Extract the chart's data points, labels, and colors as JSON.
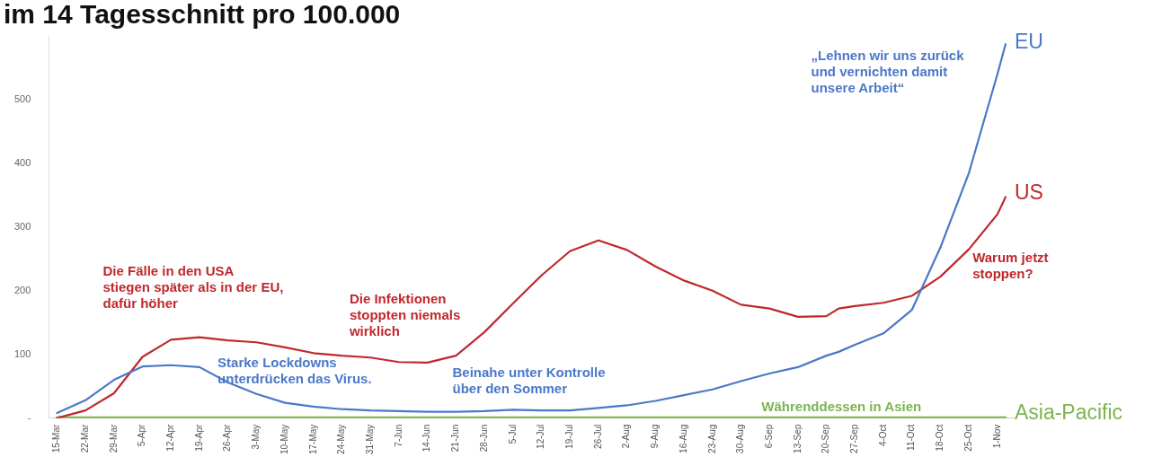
{
  "chart_data": {
    "type": "line",
    "title": "im 14 Tagesschnitt pro 100.000",
    "x": [
      "--03-15",
      "--03-22",
      "--03-29",
      "--04-05",
      "--04-12",
      "--04-19",
      "--04-26",
      "--05-03",
      "--05-10",
      "--05-17",
      "--05-24",
      "--05-31",
      "--06-07",
      "--06-14",
      "--06-21",
      "--06-28",
      "--07-05",
      "--07-12",
      "--07-19",
      "--07-26",
      "--08-02",
      "--08-09",
      "--08-16",
      "--08-23",
      "--08-30",
      "--09-06",
      "--09-13",
      "--09-20",
      "--09-23",
      "--09-27",
      "--10-04",
      "--10-11",
      "--10-18",
      "--10-25",
      "--11-01",
      "--11-03"
    ],
    "series": [
      {
        "name": "EU",
        "color": "#4a78c8",
        "values": [
          8,
          28,
          60,
          81,
          83,
          80,
          56,
          38,
          24,
          18,
          14,
          12,
          11,
          10,
          10,
          11,
          13,
          12,
          12,
          16,
          20,
          27,
          36,
          45,
          58,
          70,
          80,
          98,
          104,
          115,
          133,
          170,
          268,
          385,
          540,
          587
        ]
      },
      {
        "name": "US",
        "color": "#c0282d",
        "values": [
          0,
          12,
          39,
          96,
          123,
          127,
          122,
          119,
          111,
          102,
          98,
          95,
          88,
          87,
          98,
          135,
          180,
          224,
          262,
          279,
          264,
          238,
          216,
          200,
          178,
          172,
          159,
          160,
          172,
          176,
          181,
          192,
          222,
          265,
          320,
          347
        ]
      },
      {
        "name": "Asia-Pacific",
        "color": "#7cb450",
        "values": [
          1,
          1,
          1,
          1,
          1,
          1,
          1,
          1,
          1,
          1,
          1,
          1,
          1,
          1,
          1,
          1,
          1,
          1,
          1,
          1,
          1,
          1,
          1,
          1,
          1,
          1,
          1,
          1,
          1,
          1,
          1,
          1,
          1,
          1,
          1,
          1
        ]
      }
    ],
    "xlim": [
      "--03-13",
      "--11-05"
    ],
    "xticks": [
      {
        "value": "--03-15",
        "label": "15-Mar"
      },
      {
        "value": "--03-22",
        "label": "22-Mar"
      },
      {
        "value": "--03-29",
        "label": "29-Mar"
      },
      {
        "value": "--04-05",
        "label": "5-Apr"
      },
      {
        "value": "--04-12",
        "label": "12-Apr"
      },
      {
        "value": "--04-19",
        "label": "19-Apr"
      },
      {
        "value": "--04-26",
        "label": "26-Apr"
      },
      {
        "value": "--05-03",
        "label": "3-May"
      },
      {
        "value": "--05-10",
        "label": "10-May"
      },
      {
        "value": "--05-17",
        "label": "17-May"
      },
      {
        "value": "--05-24",
        "label": "24-May"
      },
      {
        "value": "--05-31",
        "label": "31-May"
      },
      {
        "value": "--06-07",
        "label": "7-Jun"
      },
      {
        "value": "--06-14",
        "label": "14-Jun"
      },
      {
        "value": "--06-21",
        "label": "21-Jun"
      },
      {
        "value": "--06-28",
        "label": "28-Jun"
      },
      {
        "value": "--07-05",
        "label": "5-Jul"
      },
      {
        "value": "--07-12",
        "label": "12-Jul"
      },
      {
        "value": "--07-19",
        "label": "19-Jul"
      },
      {
        "value": "--07-26",
        "label": "26-Jul"
      },
      {
        "value": "--08-02",
        "label": "2-Aug"
      },
      {
        "value": "--08-09",
        "label": "9-Aug"
      },
      {
        "value": "--08-16",
        "label": "16-Aug"
      },
      {
        "value": "--08-23",
        "label": "23-Aug"
      },
      {
        "value": "--08-30",
        "label": "30-Aug"
      },
      {
        "value": "--09-06",
        "label": "6-Sep"
      },
      {
        "value": "--09-13",
        "label": "13-Sep"
      },
      {
        "value": "--09-20",
        "label": "20-Sep"
      },
      {
        "value": "--09-27",
        "label": "27-Sep"
      },
      {
        "value": "--10-04",
        "label": "4-Oct"
      },
      {
        "value": "--10-11",
        "label": "11-Oct"
      },
      {
        "value": "--10-18",
        "label": "18-Oct"
      },
      {
        "value": "--10-25",
        "label": "25-Oct"
      },
      {
        "value": "--11-01",
        "label": "1-Nov"
      }
    ],
    "ylim": [
      0,
      600
    ],
    "yticks": [
      {
        "value": 0,
        "label": "-"
      },
      100,
      200,
      300,
      400,
      500
    ],
    "annotations": [
      "Die Fälle in den USA\nstiegen später als in der EU,\ndafür höher",
      {
        "text": "Die Infektionen\nstoppten niemals\nwirklich",
        "x": "--06-07",
        "y": 88
      },
      {
        "text": "Starke Lockdowns\nunterdrücken das Virus.",
        "x": "--05-10",
        "y": 24
      },
      {
        "text": "Beinahe unter Kontrolle\nüber den Sommer",
        "x": "--07-12",
        "y": 12
      },
      "„Lehnen wir uns zurück\nund vernichten damit\nunsere Arbeit“",
      {
        "text": "Warum jetzt\nstoppen?",
        "x": "--10-25",
        "y": 265
      },
      {
        "text": "Währenddessen in Asien",
        "x": "--09-27",
        "y": 1
      }
    ],
    "legend": false,
    "grid": false,
    "marker": "none",
    "line_style": "solid"
  }
}
